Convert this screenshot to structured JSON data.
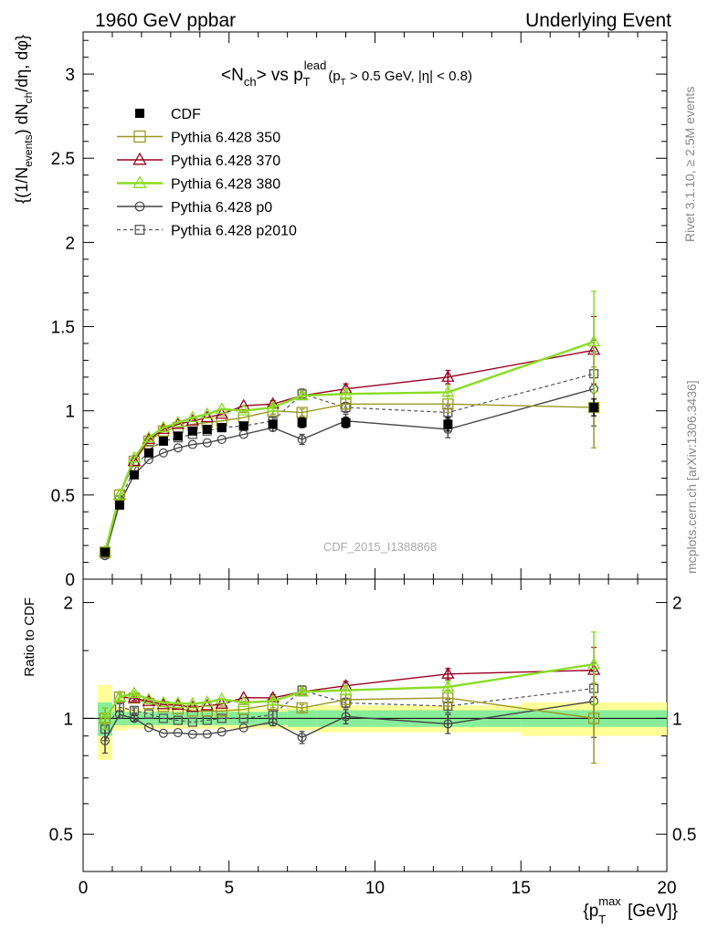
{
  "header": {
    "left": "1960 GeV ppbar",
    "right": "Underlying Event"
  },
  "title": {
    "pre": "<N",
    "sub1": "ch",
    "mid": "> vs p",
    "sub2": "T",
    "sup2": "lead",
    "cut": "(p",
    "cut_sub": "T",
    "cut_rest": " > 0.5 GeV, |η| < 0.8)"
  },
  "side_text": {
    "rivet": "Rivet 3.1.10, ≥ 2.5M events",
    "mcplots": "mcplots.cern.ch [arXiv:1306.3436]"
  },
  "watermark": "CDF_2015_I1388868",
  "y_label_main": "{(1/N_events) dN_ch/dη, dφ}",
  "y_label_ratio": "Ratio to CDF",
  "x_label": "{p_T^max [GeV]}",
  "colors": {
    "cdf": "#000000",
    "p350": "#999922",
    "p370": "#990022",
    "p380": "#88dd22",
    "p0": "#444444",
    "p2010": "#555555",
    "band_inner": "#88ee99",
    "band_outer": "#ffff99"
  },
  "legend": [
    {
      "key": "cdf",
      "label": "CDF"
    },
    {
      "key": "p350",
      "label": "Pythia 6.428 350"
    },
    {
      "key": "p370",
      "label": "Pythia 6.428 370"
    },
    {
      "key": "p380",
      "label": "Pythia 6.428 380"
    },
    {
      "key": "p0",
      "label": "Pythia 6.428 p0"
    },
    {
      "key": "p2010",
      "label": "Pythia 6.428 p2010"
    }
  ],
  "chart_data": {
    "type": "scatter",
    "xlim": [
      0,
      20
    ],
    "ylim_main": [
      0,
      3.25
    ],
    "ylim_ratio": [
      0.4,
      2.3
    ],
    "x_ticks": [
      0,
      5,
      10,
      15,
      20
    ],
    "y_ticks_main": [
      0,
      0.5,
      1,
      1.5,
      2,
      2.5,
      3
    ],
    "y_ticks_ratio": [
      0.5,
      1,
      2
    ],
    "x": [
      0.75,
      1.25,
      1.75,
      2.25,
      2.75,
      3.25,
      3.75,
      4.25,
      4.75,
      5.5,
      6.5,
      7.5,
      9.0,
      12.5,
      17.5
    ],
    "series": [
      {
        "key": "cdf",
        "name": "CDF",
        "values": [
          0.16,
          0.44,
          0.62,
          0.75,
          0.82,
          0.85,
          0.88,
          0.89,
          0.9,
          0.91,
          0.92,
          0.93,
          0.93,
          0.92,
          1.02
        ],
        "errors": [
          0.01,
          0.02,
          0.02,
          0.02,
          0.02,
          0.02,
          0.02,
          0.02,
          0.02,
          0.02,
          0.02,
          0.03,
          0.03,
          0.04,
          0.05
        ]
      },
      {
        "key": "p350",
        "name": "Pythia 6.428 350",
        "values": [
          0.16,
          0.5,
          0.7,
          0.82,
          0.88,
          0.9,
          0.92,
          0.93,
          0.94,
          0.96,
          1.0,
          0.99,
          1.04,
          1.04,
          1.02
        ],
        "errors": [
          0.01,
          0.01,
          0.01,
          0.01,
          0.01,
          0.01,
          0.01,
          0.01,
          0.01,
          0.01,
          0.02,
          0.02,
          0.03,
          0.05,
          0.24
        ]
      },
      {
        "key": "p370",
        "name": "Pythia 6.428 370",
        "values": [
          0.16,
          0.5,
          0.7,
          0.83,
          0.89,
          0.92,
          0.94,
          0.96,
          0.98,
          1.03,
          1.04,
          1.09,
          1.13,
          1.2,
          1.36
        ],
        "errors": [
          0.01,
          0.01,
          0.01,
          0.01,
          0.01,
          0.01,
          0.01,
          0.01,
          0.01,
          0.01,
          0.02,
          0.02,
          0.03,
          0.04,
          0.2
        ]
      },
      {
        "key": "p380",
        "name": "Pythia 6.428 380",
        "values": [
          0.16,
          0.5,
          0.72,
          0.84,
          0.9,
          0.93,
          0.96,
          0.98,
          1.01,
          1.0,
          1.02,
          1.09,
          1.1,
          1.11,
          1.41
        ],
        "errors": [
          0.01,
          0.01,
          0.01,
          0.01,
          0.01,
          0.01,
          0.01,
          0.01,
          0.01,
          0.01,
          0.02,
          0.02,
          0.03,
          0.04,
          0.3
        ]
      },
      {
        "key": "p0",
        "name": "Pythia 6.428 p0",
        "values": [
          0.14,
          0.45,
          0.62,
          0.71,
          0.75,
          0.78,
          0.8,
          0.81,
          0.83,
          0.86,
          0.9,
          0.83,
          0.94,
          0.89,
          1.13
        ],
        "errors": [
          0.01,
          0.01,
          0.01,
          0.01,
          0.01,
          0.01,
          0.01,
          0.01,
          0.01,
          0.01,
          0.02,
          0.03,
          0.04,
          0.05,
          0.22
        ]
      },
      {
        "key": "p2010",
        "name": "Pythia 6.428 p2010",
        "values": [
          0.15,
          0.47,
          0.65,
          0.77,
          0.82,
          0.84,
          0.86,
          0.88,
          0.9,
          0.91,
          0.94,
          1.1,
          1.02,
          0.99,
          1.22
        ],
        "errors": [
          0.01,
          0.01,
          0.01,
          0.01,
          0.01,
          0.01,
          0.01,
          0.01,
          0.01,
          0.01,
          0.02,
          0.03,
          0.03,
          0.04,
          0.2
        ]
      }
    ],
    "ratio_band": {
      "edges": [
        0.5,
        1.0,
        1.5,
        2.0,
        2.5,
        3.0,
        3.5,
        4.0,
        4.5,
        5.0,
        6.0,
        7.0,
        8.0,
        10.0,
        15.0,
        20.0
      ],
      "inner": [
        0.1,
        0.04,
        0.04,
        0.04,
        0.04,
        0.04,
        0.04,
        0.04,
        0.04,
        0.04,
        0.04,
        0.05,
        0.05,
        0.05,
        0.05
      ],
      "outer": [
        0.22,
        0.07,
        0.06,
        0.06,
        0.06,
        0.06,
        0.06,
        0.06,
        0.06,
        0.06,
        0.06,
        0.07,
        0.08,
        0.08,
        0.1
      ]
    }
  }
}
